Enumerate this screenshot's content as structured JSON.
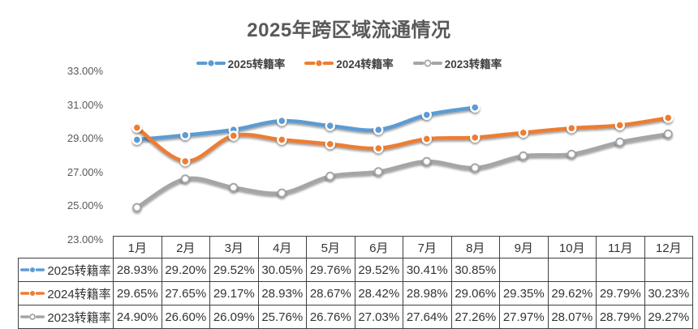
{
  "title": "2025年跨区域流通情况",
  "colors": {
    "blue": "#5B9BD5",
    "orange": "#ED7D31",
    "gray": "#A5A5A5",
    "title_text": "#595959",
    "axis_text": "#595959",
    "table_border": "#404040",
    "table_text": "#333333",
    "background": "#FFFFFF"
  },
  "y_axis": {
    "tick_labels": [
      "33.00%",
      "31.00%",
      "29.00%",
      "27.00%",
      "25.00%",
      "23.00%"
    ],
    "tick_values": [
      33,
      31,
      29,
      27,
      25,
      23
    ],
    "min": 23,
    "max": 33
  },
  "chart_data": {
    "type": "line",
    "title": "2025年跨区域流通情况",
    "categories": [
      "1月",
      "2月",
      "3月",
      "4月",
      "5月",
      "6月",
      "7月",
      "8月",
      "9月",
      "10月",
      "11月",
      "12月"
    ],
    "xlabel": "",
    "ylabel": "",
    "ylim": [
      23,
      33
    ],
    "y_tick_step": 2,
    "grid": false,
    "smooth_lines": true,
    "legend_position": "top",
    "data_table_shown": true,
    "series": [
      {
        "name": "2025转籍率",
        "key": "2025",
        "color": "#5B9BD5",
        "marker": "filled-circle",
        "values": [
          28.93,
          29.2,
          29.52,
          30.05,
          29.76,
          29.52,
          30.41,
          30.85,
          null,
          null,
          null,
          null
        ],
        "display": [
          "28.93%",
          "29.20%",
          "29.52%",
          "30.05%",
          "29.76%",
          "29.52%",
          "30.41%",
          "30.85%",
          "",
          "",
          "",
          ""
        ]
      },
      {
        "name": "2024转籍率",
        "key": "2024",
        "color": "#ED7D31",
        "marker": "filled-circle",
        "values": [
          29.65,
          27.65,
          29.17,
          28.93,
          28.67,
          28.42,
          28.98,
          29.06,
          29.35,
          29.62,
          29.79,
          30.23
        ],
        "display": [
          "29.65%",
          "27.65%",
          "29.17%",
          "28.93%",
          "28.67%",
          "28.42%",
          "28.98%",
          "29.06%",
          "29.35%",
          "29.62%",
          "29.79%",
          "30.23%"
        ]
      },
      {
        "name": "2023转籍率",
        "key": "2023",
        "color": "#A5A5A5",
        "marker": "open-circle",
        "values": [
          24.9,
          26.6,
          26.09,
          25.76,
          26.76,
          27.03,
          27.64,
          27.26,
          27.97,
          28.07,
          28.79,
          29.27
        ],
        "display": [
          "24.90%",
          "26.60%",
          "26.09%",
          "25.76%",
          "26.76%",
          "27.03%",
          "27.64%",
          "27.26%",
          "27.97%",
          "28.07%",
          "28.79%",
          "29.27%"
        ]
      }
    ]
  }
}
